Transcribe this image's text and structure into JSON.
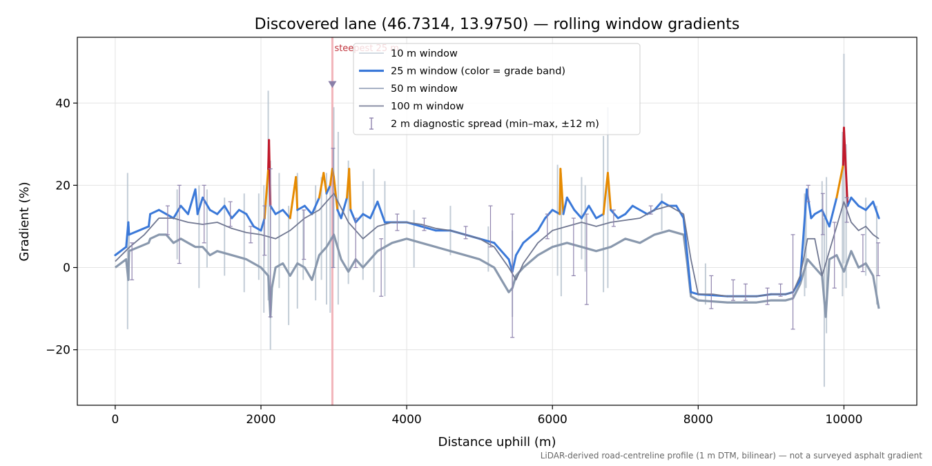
{
  "chart_data": {
    "type": "line",
    "title": "Discovered lane (46.7314, 13.9750) — rolling window gradients",
    "xlabel": "Distance uphill (m)",
    "ylabel": "Gradient (%)",
    "xlim": [
      -520,
      11000
    ],
    "ylim": [
      -33.5,
      56
    ],
    "x_ticks": [
      0,
      2000,
      4000,
      6000,
      8000,
      10000
    ],
    "x_tick_labels": [
      "0",
      "2000",
      "4000",
      "6000",
      "8000",
      "10000"
    ],
    "y_ticks": [
      -20,
      0,
      20,
      40
    ],
    "y_tick_labels": [
      "−20",
      "0",
      "20",
      "40"
    ],
    "grid": true,
    "legend_position": "top-center",
    "legend": [
      {
        "label": "10 m window",
        "style": "thin-line",
        "color": "#b8c4d0"
      },
      {
        "label": "25 m window (color = grade band)",
        "style": "thick-line",
        "color": "#3a78d8"
      },
      {
        "label": "50 m window",
        "style": "line",
        "color": "#9aa6bb"
      },
      {
        "label": "100 m window",
        "style": "line",
        "color": "#7a7f99"
      },
      {
        "label": "2 m diagnostic spread (min–max, ±12 m)",
        "style": "errorbar",
        "color": "#8e82ad"
      }
    ],
    "annotation": {
      "label": "steepest 25 m",
      "x": 2980,
      "y": 44.5,
      "color": "#c0313a"
    },
    "grade_band_colors": {
      "normal": "#3a78d8",
      "steep": "#e68a00",
      "very_steep": "#c0192b"
    },
    "series_100m": {
      "name": "100 m window",
      "x": [
        0,
        200,
        400,
        600,
        800,
        1000,
        1200,
        1400,
        1600,
        1800,
        2000,
        2200,
        2400,
        2600,
        2800,
        3000,
        3200,
        3400,
        3600,
        3800,
        4000,
        4200,
        4400,
        4600,
        4800,
        5000,
        5200,
        5400,
        5500,
        5600,
        5800,
        6000,
        6200,
        6400,
        6600,
        6800,
        7000,
        7200,
        7400,
        7600,
        7800,
        7900,
        8000,
        8200,
        8400,
        8600,
        8800,
        9000,
        9200,
        9300,
        9400,
        9500,
        9600,
        9700,
        9800,
        9900,
        10000,
        10100,
        10200,
        10300,
        10400,
        10480
      ],
      "values": [
        1.5,
        5,
        8,
        12,
        12,
        11,
        10.5,
        11,
        9.5,
        8.5,
        8,
        7,
        9,
        12,
        14,
        18,
        11,
        7,
        10,
        11,
        11,
        10.5,
        9.5,
        9,
        8,
        7,
        5,
        0,
        -3,
        1,
        6,
        9,
        10,
        11,
        10,
        11,
        11.5,
        12,
        14,
        15,
        13,
        2,
        -6.5,
        -6.5,
        -7,
        -7,
        -7,
        -6.5,
        -6.5,
        -6,
        -2,
        7,
        7,
        -2,
        4,
        10,
        16,
        11,
        9,
        10,
        8,
        7
      ]
    },
    "series_25m_upper": {
      "name": "25 m window",
      "x": [
        0,
        150,
        180,
        190,
        460,
        480,
        600,
        700,
        800,
        900,
        1000,
        1100,
        1130,
        1200,
        1300,
        1400,
        1500,
        1600,
        1700,
        1800,
        1900,
        2000,
        2050,
        2100,
        2110,
        2130,
        2200,
        2300,
        2400,
        2480,
        2500,
        2600,
        2700,
        2800,
        2860,
        2900,
        2950,
        2980,
        3000,
        3050,
        3100,
        3180,
        3210,
        3230,
        3300,
        3400,
        3500,
        3600,
        3700,
        3800,
        3900,
        4000,
        4200,
        4400,
        4600,
        4800,
        5000,
        5200,
        5400,
        5450,
        5500,
        5600,
        5800,
        5900,
        6000,
        6100,
        6110,
        6150,
        6200,
        6300,
        6400,
        6500,
        6600,
        6700,
        6760,
        6800,
        6900,
        7000,
        7100,
        7200,
        7300,
        7400,
        7500,
        7600,
        7700,
        7800,
        7850,
        7900,
        8000,
        8400,
        8800,
        9000,
        9200,
        9300,
        9400,
        9490,
        9550,
        9600,
        9700,
        9800,
        9900,
        9990,
        10000,
        10050,
        10100,
        10200,
        10300,
        10400,
        10480
      ],
      "values": [
        3,
        5,
        11,
        8,
        10,
        13,
        14,
        13,
        12,
        15,
        13,
        19,
        13,
        17,
        14,
        13,
        15,
        12,
        14,
        13,
        10,
        9,
        12,
        24,
        31,
        15,
        13,
        14,
        12,
        22,
        14,
        15,
        13,
        17,
        23,
        18,
        20,
        24,
        22,
        14,
        12,
        17,
        24,
        14,
        11,
        13,
        12,
        16,
        11,
        11,
        11,
        11,
        10,
        9,
        9,
        8,
        7,
        6,
        2,
        -1,
        3,
        6,
        9,
        12,
        14,
        13,
        24,
        13,
        17,
        14,
        12,
        15,
        12,
        13,
        23,
        14,
        12,
        13,
        15,
        14,
        13,
        14,
        16,
        15,
        15,
        12,
        3,
        -6,
        -6.5,
        -7,
        -7,
        -6.5,
        -6.5,
        -6,
        -3,
        19,
        12,
        13,
        14,
        10,
        17,
        25,
        34,
        15,
        17,
        15,
        14,
        16,
        12
      ]
    },
    "series_25m_lower": {
      "name": "25 m window",
      "x": [
        0,
        150,
        180,
        190,
        460,
        480,
        600,
        700,
        800,
        900,
        1000,
        1100,
        1200,
        1300,
        1400,
        1600,
        1800,
        2000,
        2100,
        2130,
        2150,
        2200,
        2300,
        2400,
        2500,
        2600,
        2700,
        2800,
        2900,
        3000,
        3100,
        3200,
        3300,
        3400,
        3600,
        3800,
        4000,
        4200,
        4400,
        4600,
        4800,
        5000,
        5200,
        5400,
        5450,
        5500,
        5600,
        5800,
        6000,
        6200,
        6400,
        6600,
        6800,
        7000,
        7200,
        7400,
        7600,
        7800,
        7850,
        7900,
        8000,
        8400,
        8800,
        9000,
        9200,
        9300,
        9400,
        9500,
        9600,
        9700,
        9750,
        9800,
        9900,
        10000,
        10100,
        10200,
        10300,
        10400,
        10480
      ],
      "values": [
        0,
        2,
        -3,
        4,
        6,
        7,
        8,
        8,
        6,
        7,
        6,
        5,
        5,
        3,
        4,
        3,
        2,
        0,
        -2,
        -12,
        -5,
        0,
        1,
        -2,
        1,
        0,
        -3,
        3,
        5,
        8,
        2,
        -1,
        2,
        0,
        4,
        6,
        7,
        6,
        5,
        4,
        3,
        2,
        0,
        -6,
        -5,
        -2,
        0,
        3,
        5,
        6,
        5,
        4,
        5,
        7,
        6,
        8,
        9,
        8,
        1,
        -7,
        -8,
        -8.5,
        -8.5,
        -8,
        -8,
        -7.5,
        -4,
        2,
        0,
        -2,
        -12,
        2,
        3,
        -1,
        4,
        0,
        1,
        -2,
        -10
      ]
    },
    "series_10m_spikes": {
      "name": "10 m window",
      "x": [
        170,
        190,
        850,
        1150,
        1260,
        1500,
        1770,
        1970,
        2040,
        2100,
        2130,
        2250,
        2380,
        2500,
        2580,
        2750,
        2830,
        2900,
        2950,
        3000,
        3060,
        3200,
        3400,
        3550,
        3700,
        4100,
        4600,
        5120,
        5450,
        6070,
        6120,
        6400,
        6450,
        6700,
        6760,
        7500,
        8100,
        9460,
        9480,
        9700,
        9730,
        9760,
        9980,
        10000,
        10030,
        10300,
        10450
      ],
      "lo": [
        -15,
        -3,
        2,
        -5,
        0,
        -2,
        -6,
        -3,
        -11,
        -8,
        -20,
        -5,
        -14,
        -10,
        -3,
        -8,
        -3,
        -9,
        -11,
        0,
        -9,
        -4,
        -3,
        -6,
        -7,
        0,
        3,
        -1,
        -12,
        -2,
        -7,
        2,
        -1,
        -6,
        -5,
        9,
        -9,
        -7,
        -5,
        -3,
        -29,
        -16,
        -7,
        1,
        -5,
        -2,
        -9
      ],
      "hi": [
        23,
        10,
        19,
        20,
        19,
        17,
        18,
        18,
        20,
        43,
        26,
        23,
        15,
        23,
        14,
        20,
        22,
        23,
        20,
        39,
        33,
        26,
        21,
        24,
        21,
        14,
        15,
        10,
        9,
        25,
        23,
        22,
        20,
        32,
        39,
        18,
        1,
        18,
        15,
        21,
        12,
        22,
        33,
        52,
        30,
        17,
        15
      ]
    },
    "errorbars_2m": {
      "name": "2 m diagnostic spread (min–max, ±12 m)",
      "x": [
        230,
        720,
        880,
        1220,
        1580,
        1860,
        2050,
        2130,
        2590,
        2990,
        3300,
        3650,
        3870,
        4240,
        4810,
        5150,
        5450,
        5930,
        6290,
        6470,
        6840,
        7350,
        8180,
        8480,
        8650,
        8950,
        9130,
        9300,
        9510,
        9710,
        9870,
        10040,
        10260,
        10470
      ],
      "lo": [
        -3,
        8,
        1,
        6,
        10,
        6,
        3,
        -12,
        2,
        0,
        0,
        -7,
        9,
        9,
        7,
        5,
        -17,
        7,
        -2,
        -9,
        10,
        13,
        -10,
        -8,
        -8,
        -9,
        -7,
        -15,
        16,
        8,
        -5,
        11,
        -1,
        -2
      ],
      "hi": [
        6,
        15,
        20,
        20,
        16,
        10,
        15,
        24,
        14,
        29,
        12,
        7,
        13,
        12,
        10,
        15,
        13,
        13,
        12,
        13,
        14,
        15,
        -2,
        -3,
        -4,
        -5,
        -4,
        8,
        20,
        18,
        11,
        17,
        8,
        6
      ],
      "color": "#8e82ad"
    }
  },
  "footnote": "LiDAR-derived road-centreline profile (1 m DTM, bilinear) — not a surveyed asphalt gradient"
}
